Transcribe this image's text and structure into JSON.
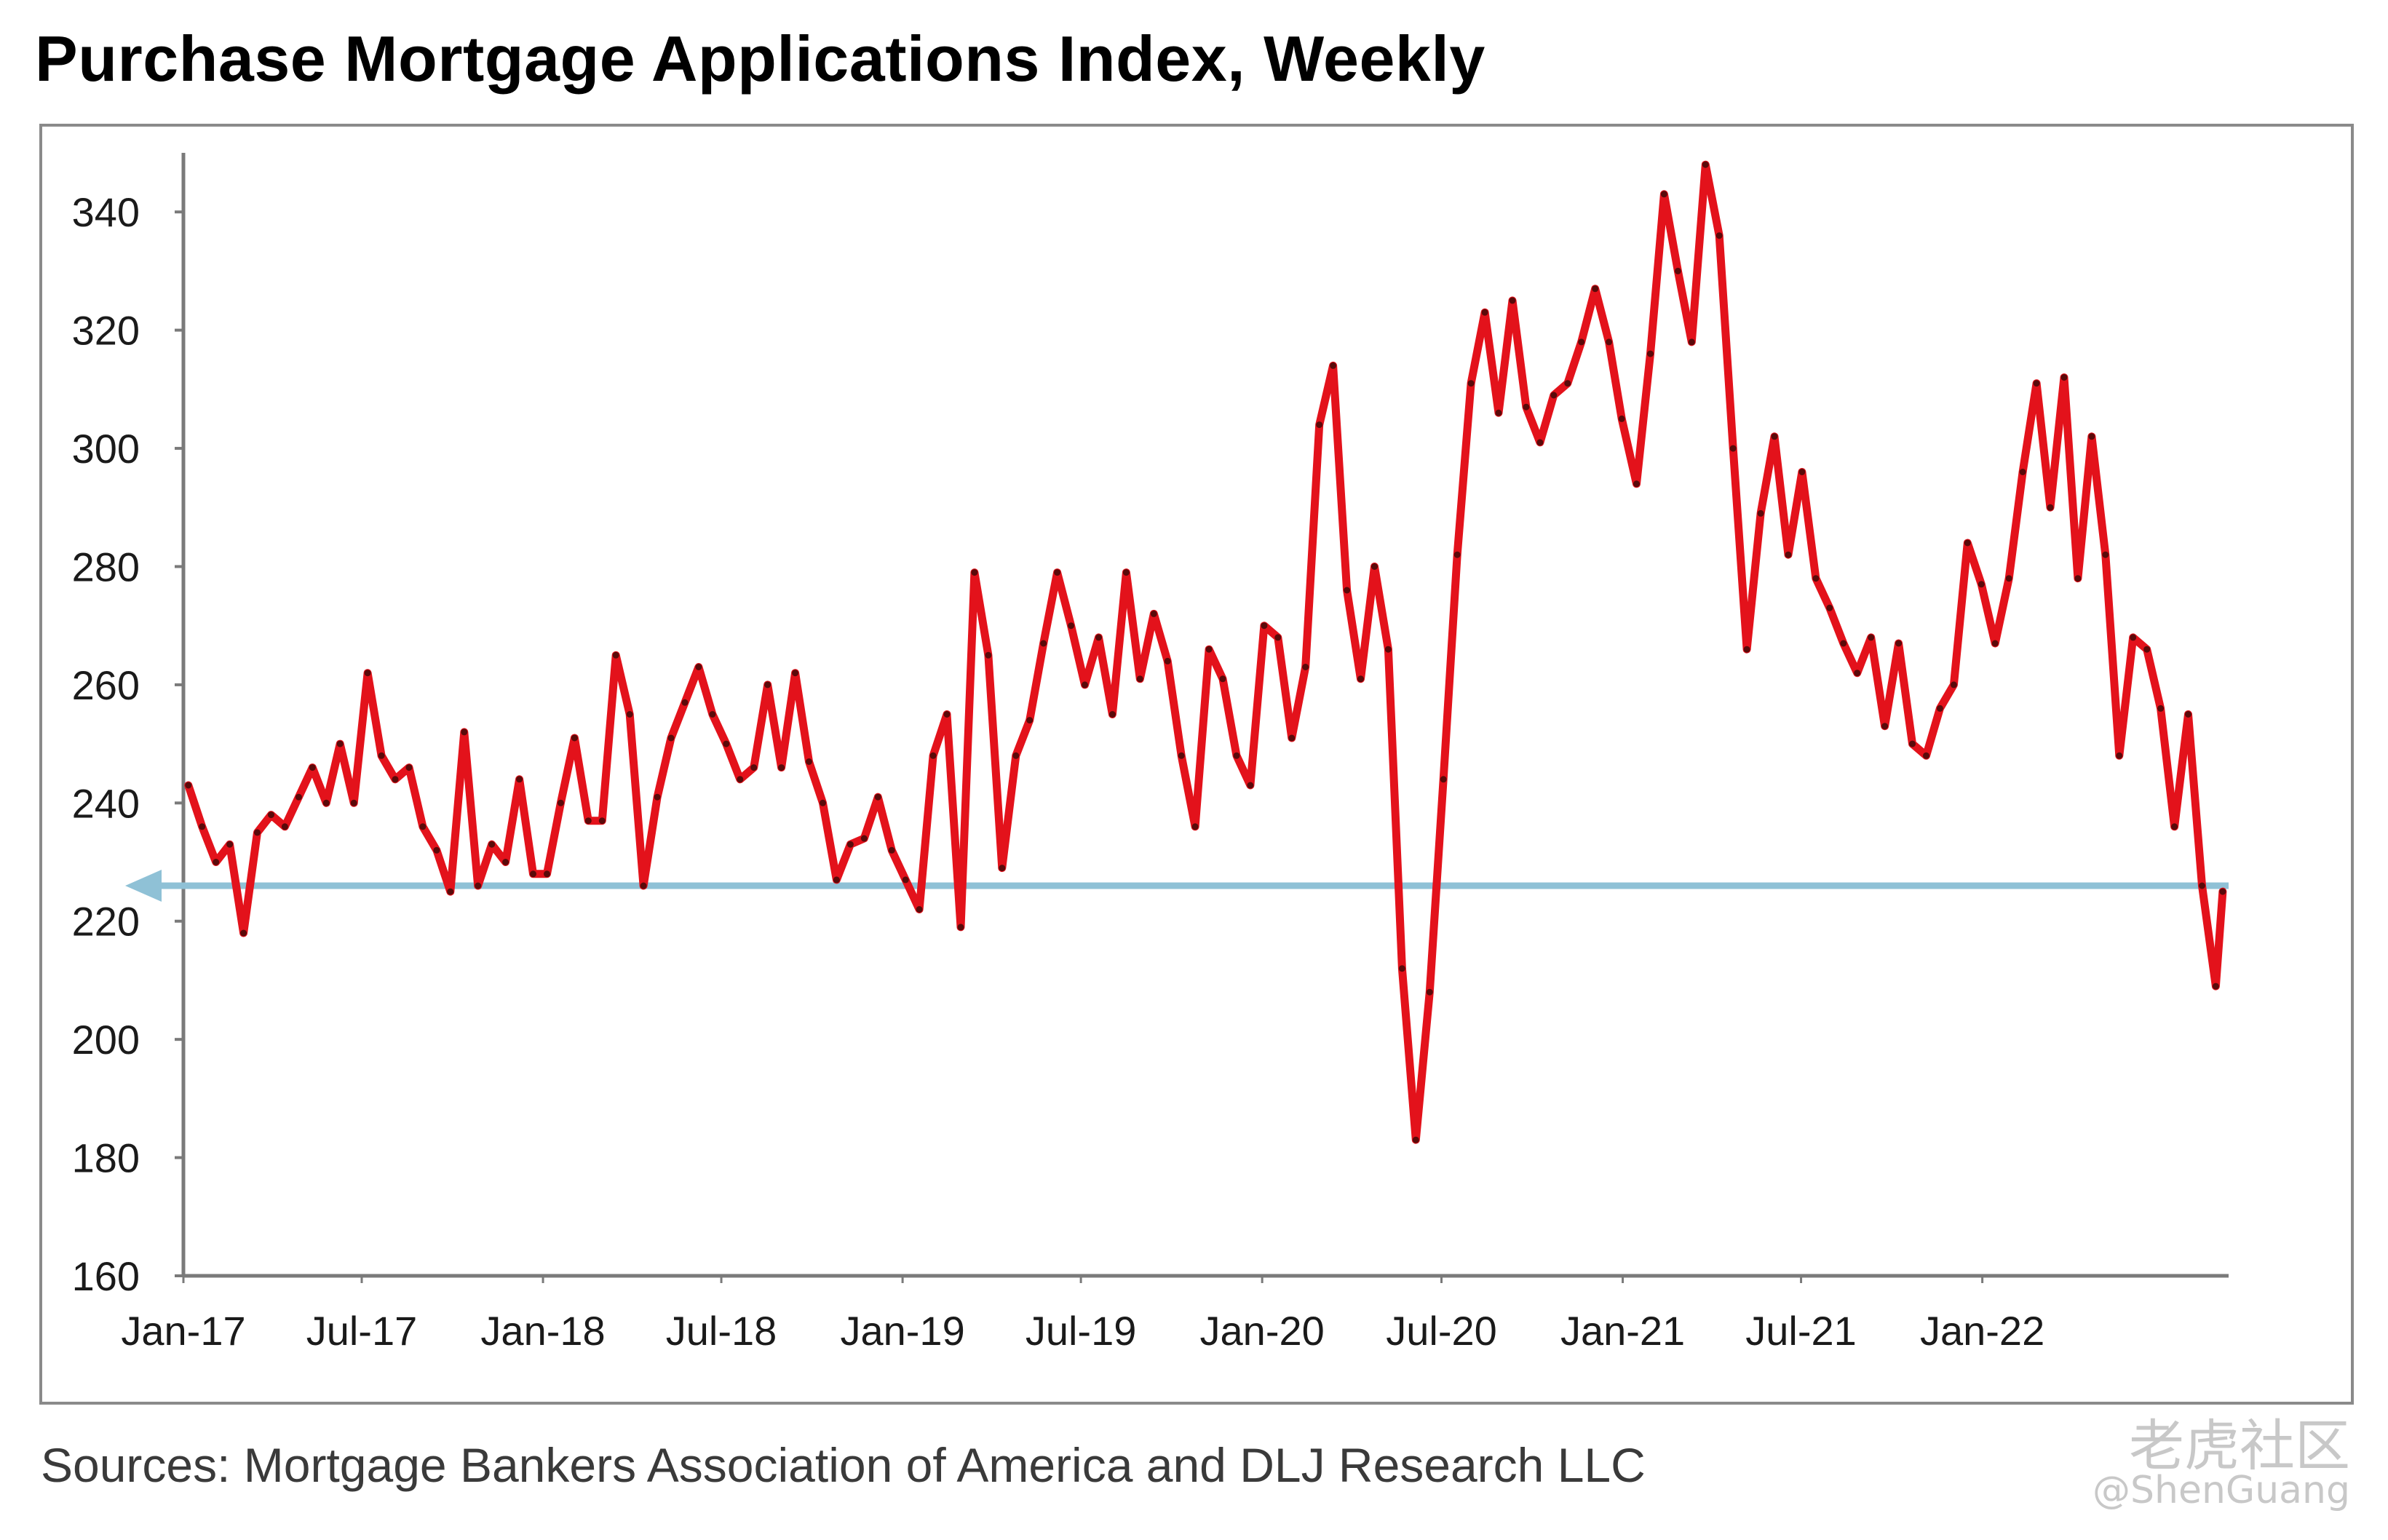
{
  "header": {
    "title": "Purchase Mortgage Applications Index, Weekly"
  },
  "footer": {
    "source": "Sources: Mortgage Bankers Association of America and DLJ Research LLC"
  },
  "watermark": {
    "brand": "老虎社区",
    "user": "@ShenGuang"
  },
  "colors": {
    "series": "#e3121b",
    "reference": "#8fc1d6",
    "axis": "#7a7a7a"
  },
  "chart_data": {
    "type": "line",
    "title": "Purchase Mortgage Applications Index, Weekly",
    "xlabel": "",
    "ylabel": "",
    "ylim": [
      160,
      350
    ],
    "yticks": [
      160,
      180,
      200,
      220,
      240,
      260,
      280,
      300,
      320,
      340
    ],
    "xticks": [
      "Jan-17",
      "Jul-17",
      "Jan-18",
      "Jul-18",
      "Jan-19",
      "Jul-19",
      "Jan-20",
      "Jul-20",
      "Jan-21",
      "Jul-21",
      "Jan-22"
    ],
    "reference_line": {
      "value": 226,
      "style": "horizontal arrow pointing left"
    },
    "grid": false,
    "legend": "none",
    "series": [
      {
        "values": [
          [
            "2017-01-06",
            243
          ],
          [
            "2017-01-20",
            236
          ],
          [
            "2017-02-03",
            230
          ],
          [
            "2017-02-17",
            233
          ],
          [
            "2017-03-03",
            218
          ],
          [
            "2017-03-17",
            235
          ],
          [
            "2017-03-31",
            238
          ],
          [
            "2017-04-14",
            236
          ],
          [
            "2017-04-28",
            241
          ],
          [
            "2017-05-12",
            246
          ],
          [
            "2017-05-26",
            240
          ],
          [
            "2017-06-09",
            250
          ],
          [
            "2017-06-23",
            240
          ],
          [
            "2017-07-07",
            262
          ],
          [
            "2017-07-21",
            248
          ],
          [
            "2017-08-04",
            244
          ],
          [
            "2017-08-18",
            246
          ],
          [
            "2017-09-01",
            236
          ],
          [
            "2017-09-15",
            232
          ],
          [
            "2017-09-29",
            225
          ],
          [
            "2017-10-13",
            252
          ],
          [
            "2017-10-27",
            226
          ],
          [
            "2017-11-10",
            233
          ],
          [
            "2017-11-24",
            230
          ],
          [
            "2017-12-08",
            244
          ],
          [
            "2017-12-22",
            228
          ],
          [
            "2018-01-05",
            228
          ],
          [
            "2018-01-19",
            240
          ],
          [
            "2018-02-02",
            251
          ],
          [
            "2018-02-16",
            237
          ],
          [
            "2018-03-02",
            237
          ],
          [
            "2018-03-16",
            265
          ],
          [
            "2018-03-30",
            255
          ],
          [
            "2018-04-13",
            226
          ],
          [
            "2018-04-27",
            241
          ],
          [
            "2018-05-11",
            251
          ],
          [
            "2018-05-25",
            257
          ],
          [
            "2018-06-08",
            263
          ],
          [
            "2018-06-22",
            255
          ],
          [
            "2018-07-06",
            250
          ],
          [
            "2018-07-20",
            244
          ],
          [
            "2018-08-03",
            246
          ],
          [
            "2018-08-17",
            260
          ],
          [
            "2018-08-31",
            246
          ],
          [
            "2018-09-14",
            262
          ],
          [
            "2018-09-28",
            247
          ],
          [
            "2018-10-12",
            240
          ],
          [
            "2018-10-26",
            227
          ],
          [
            "2018-11-09",
            233
          ],
          [
            "2018-11-23",
            234
          ],
          [
            "2018-12-07",
            241
          ],
          [
            "2018-12-21",
            232
          ],
          [
            "2019-01-04",
            227
          ],
          [
            "2019-01-18",
            222
          ],
          [
            "2019-02-01",
            248
          ],
          [
            "2019-02-15",
            255
          ],
          [
            "2019-03-01",
            219
          ],
          [
            "2019-03-15",
            279
          ],
          [
            "2019-03-29",
            265
          ],
          [
            "2019-04-12",
            229
          ],
          [
            "2019-04-26",
            248
          ],
          [
            "2019-05-10",
            254
          ],
          [
            "2019-05-24",
            267
          ],
          [
            "2019-06-07",
            279
          ],
          [
            "2019-06-21",
            270
          ],
          [
            "2019-07-05",
            260
          ],
          [
            "2019-07-19",
            268
          ],
          [
            "2019-08-02",
            255
          ],
          [
            "2019-08-16",
            279
          ],
          [
            "2019-08-30",
            261
          ],
          [
            "2019-09-13",
            272
          ],
          [
            "2019-09-27",
            264
          ],
          [
            "2019-10-11",
            248
          ],
          [
            "2019-10-25",
            236
          ],
          [
            "2019-11-08",
            266
          ],
          [
            "2019-11-22",
            261
          ],
          [
            "2019-12-06",
            248
          ],
          [
            "2019-12-20",
            243
          ],
          [
            "2020-01-03",
            270
          ],
          [
            "2020-01-17",
            268
          ],
          [
            "2020-01-31",
            251
          ],
          [
            "2020-02-14",
            263
          ],
          [
            "2020-02-28",
            304
          ],
          [
            "2020-03-13",
            314
          ],
          [
            "2020-03-27",
            276
          ],
          [
            "2020-04-10",
            261
          ],
          [
            "2020-04-24",
            280
          ],
          [
            "2020-05-08",
            266
          ],
          [
            "2020-05-22",
            212
          ],
          [
            "2020-06-05",
            183
          ],
          [
            "2020-06-19",
            208
          ],
          [
            "2020-07-03",
            244
          ],
          [
            "2020-07-17",
            282
          ],
          [
            "2020-07-31",
            311
          ],
          [
            "2020-08-14",
            323
          ],
          [
            "2020-08-28",
            306
          ],
          [
            "2020-09-11",
            325
          ],
          [
            "2020-09-25",
            307
          ],
          [
            "2020-10-09",
            301
          ],
          [
            "2020-10-23",
            309
          ],
          [
            "2020-11-06",
            311
          ],
          [
            "2020-11-20",
            318
          ],
          [
            "2020-12-04",
            327
          ],
          [
            "2020-12-18",
            318
          ],
          [
            "2020-12-31",
            305
          ],
          [
            "2021-01-15",
            294
          ],
          [
            "2021-01-29",
            316
          ],
          [
            "2021-02-12",
            343
          ],
          [
            "2021-02-26",
            330
          ],
          [
            "2021-03-12",
            318
          ],
          [
            "2021-03-26",
            348
          ],
          [
            "2021-04-09",
            336
          ],
          [
            "2021-04-23",
            300
          ],
          [
            "2021-05-07",
            266
          ],
          [
            "2021-05-21",
            289
          ],
          [
            "2021-06-04",
            302
          ],
          [
            "2021-06-18",
            282
          ],
          [
            "2021-07-02",
            296
          ],
          [
            "2021-07-16",
            278
          ],
          [
            "2021-07-30",
            273
          ],
          [
            "2021-08-13",
            267
          ],
          [
            "2021-08-27",
            262
          ],
          [
            "2021-09-10",
            268
          ],
          [
            "2021-09-24",
            253
          ],
          [
            "2021-10-08",
            267
          ],
          [
            "2021-10-22",
            250
          ],
          [
            "2021-11-05",
            248
          ],
          [
            "2021-11-19",
            256
          ],
          [
            "2021-12-03",
            260
          ],
          [
            "2021-12-17",
            284
          ],
          [
            "2021-12-31",
            277
          ],
          [
            "2022-01-14",
            267
          ],
          [
            "2022-01-28",
            278
          ],
          [
            "2022-02-11",
            296
          ],
          [
            "2022-02-25",
            311
          ],
          [
            "2022-03-11",
            290
          ],
          [
            "2022-03-25",
            312
          ],
          [
            "2022-04-08",
            278
          ],
          [
            "2022-04-22",
            302
          ],
          [
            "2022-05-06",
            282
          ],
          [
            "2022-05-20",
            248
          ],
          [
            "2022-06-03",
            268
          ],
          [
            "2022-06-17",
            266
          ],
          [
            "2022-07-01",
            256
          ],
          [
            "2022-07-15",
            236
          ],
          [
            "2022-07-29",
            255
          ],
          [
            "2022-08-12",
            226
          ],
          [
            "2022-08-26",
            209
          ],
          [
            "2022-09-02",
            225
          ]
        ]
      }
    ]
  }
}
